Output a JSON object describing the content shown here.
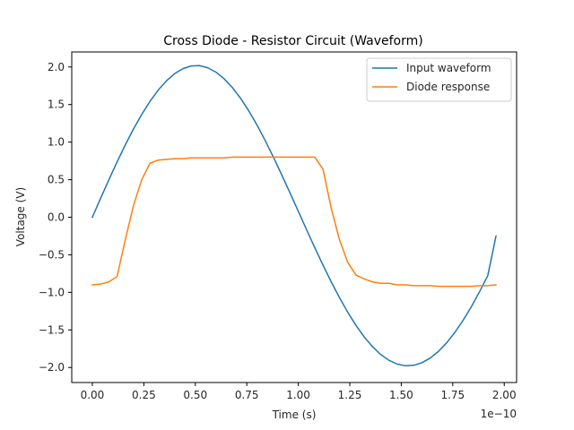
{
  "chart_data": {
    "type": "line",
    "title": "Cross Diode - Resistor Circuit (Waveform)",
    "xlabel": "Time (s)",
    "ylabel": "Voltage (V)",
    "x_offset_label": "1e−10",
    "xlim": [
      -0.1,
      2.06
    ],
    "ylim": [
      -2.2,
      2.2
    ],
    "x_ticks": [
      0.0,
      0.25,
      0.5,
      0.75,
      1.0,
      1.25,
      1.5,
      1.75,
      2.0
    ],
    "x_tick_labels": [
      "0.00",
      "0.25",
      "0.50",
      "0.75",
      "1.00",
      "1.25",
      "1.50",
      "1.75",
      "2.00"
    ],
    "y_ticks": [
      -2.0,
      -1.5,
      -1.0,
      -0.5,
      0.0,
      0.5,
      1.0,
      1.5,
      2.0
    ],
    "y_tick_labels": [
      "−2.0",
      "−1.5",
      "−1.0",
      "−0.5",
      "0.0",
      "0.5",
      "1.0",
      "1.5",
      "2.0"
    ],
    "grid": false,
    "legend_position": "top-right",
    "series": [
      {
        "name": "Input waveform",
        "color": "#1f77b4",
        "x": [
          0.0,
          0.04,
          0.08,
          0.12,
          0.16,
          0.2,
          0.24,
          0.28,
          0.32,
          0.36,
          0.4,
          0.44,
          0.48,
          0.52,
          0.56,
          0.6,
          0.64,
          0.68,
          0.72,
          0.76,
          0.8,
          0.84,
          0.88,
          0.92,
          0.96,
          1.0,
          1.04,
          1.08,
          1.12,
          1.16,
          1.2,
          1.24,
          1.28,
          1.32,
          1.36,
          1.4,
          1.44,
          1.48,
          1.52,
          1.56,
          1.6,
          1.64,
          1.68,
          1.72,
          1.76,
          1.8,
          1.84,
          1.88,
          1.92,
          1.96
        ],
        "y": [
          0.0,
          0.251,
          0.497,
          0.736,
          0.963,
          1.176,
          1.37,
          1.543,
          1.693,
          1.816,
          1.912,
          1.978,
          2.014,
          2.018,
          1.99,
          1.932,
          1.843,
          1.726,
          1.582,
          1.414,
          1.225,
          1.017,
          0.795,
          0.562,
          0.323,
          0.08,
          -0.164,
          -0.404,
          -0.637,
          -0.86,
          -1.07,
          -1.264,
          -1.439,
          -1.593,
          -1.722,
          -1.826,
          -1.904,
          -1.954,
          -1.977,
          -1.971,
          -1.937,
          -1.876,
          -1.787,
          -1.673,
          -1.534,
          -1.373,
          -1.192,
          -0.992,
          -0.777,
          -0.25
        ]
      },
      {
        "name": "Diode response",
        "color": "#ff7f0e",
        "x": [
          0.0,
          0.04,
          0.08,
          0.12,
          0.16,
          0.2,
          0.24,
          0.28,
          0.32,
          0.36,
          0.4,
          0.44,
          0.48,
          0.52,
          0.56,
          0.6,
          0.64,
          0.68,
          0.72,
          0.76,
          0.8,
          0.84,
          0.88,
          0.92,
          0.96,
          1.0,
          1.04,
          1.08,
          1.12,
          1.16,
          1.2,
          1.24,
          1.28,
          1.32,
          1.36,
          1.4,
          1.44,
          1.48,
          1.52,
          1.56,
          1.6,
          1.64,
          1.68,
          1.72,
          1.76,
          1.8,
          1.84,
          1.88,
          1.92,
          1.96
        ],
        "y": [
          -0.9,
          -0.89,
          -0.86,
          -0.79,
          -0.3,
          0.16,
          0.5,
          0.72,
          0.76,
          0.77,
          0.78,
          0.78,
          0.79,
          0.79,
          0.79,
          0.79,
          0.79,
          0.8,
          0.8,
          0.8,
          0.8,
          0.8,
          0.8,
          0.8,
          0.8,
          0.8,
          0.8,
          0.8,
          0.64,
          0.12,
          -0.3,
          -0.6,
          -0.77,
          -0.82,
          -0.86,
          -0.88,
          -0.88,
          -0.9,
          -0.9,
          -0.91,
          -0.91,
          -0.91,
          -0.92,
          -0.92,
          -0.92,
          -0.92,
          -0.92,
          -0.91,
          -0.91,
          -0.9
        ]
      }
    ]
  }
}
